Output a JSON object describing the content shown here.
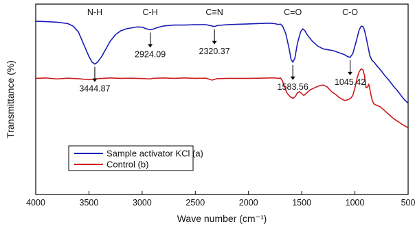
{
  "chart_data": {
    "type": "line",
    "title": "",
    "xlabel": "Wave number (cm⁻¹)",
    "ylabel": "Transmittance (%)",
    "xlim": [
      4000,
      500
    ],
    "x_reversed": true,
    "xticks": [
      4000,
      3500,
      3000,
      2500,
      2000,
      1500,
      1000,
      500
    ],
    "ylim": [
      0,
      100
    ],
    "yticks_shown": false,
    "grid": false,
    "legend": {
      "placement": "lower-left"
    },
    "series": [
      {
        "name": "Sample activator KCl (a)",
        "color": "#1a1ab8",
        "x": [
          4000,
          3900,
          3800,
          3700,
          3650,
          3600,
          3550,
          3500,
          3470,
          3444.87,
          3420,
          3380,
          3340,
          3300,
          3250,
          3200,
          3150,
          3100,
          3050,
          3000,
          2960,
          2924.09,
          2890,
          2850,
          2800,
          2700,
          2600,
          2500,
          2400,
          2350,
          2320.37,
          2290,
          2200,
          2100,
          2000,
          1900,
          1800,
          1750,
          1720,
          1700,
          1680,
          1650,
          1620,
          1600,
          1583.56,
          1565,
          1540,
          1510,
          1490,
          1470,
          1450,
          1400,
          1350,
          1300,
          1250,
          1200,
          1150,
          1100,
          1070,
          1045.42,
          1020,
          990,
          960,
          940,
          920,
          900,
          880,
          860,
          840,
          820,
          800,
          760,
          720,
          680,
          640,
          600,
          560,
          530,
          500
        ],
        "y": [
          91.0,
          90.8,
          90.5,
          89.8,
          88.5,
          85.5,
          79.0,
          72.5,
          69.5,
          68.5,
          69.5,
          72.5,
          76.5,
          80.5,
          84.0,
          86.0,
          87.0,
          87.5,
          88.0,
          87.9,
          87.0,
          86.5,
          87.0,
          87.8,
          88.5,
          89.0,
          89.0,
          89.2,
          89.2,
          88.6,
          88.2,
          88.8,
          89.2,
          89.4,
          89.6,
          89.8,
          90.0,
          89.7,
          89.3,
          89.5,
          88.5,
          84.5,
          77.0,
          71.0,
          69.5,
          71.5,
          79.5,
          85.5,
          87.0,
          86.0,
          84.0,
          80.5,
          78.0,
          76.5,
          76.0,
          75.5,
          74.5,
          73.5,
          72.5,
          72.0,
          74.0,
          80.0,
          86.5,
          88.5,
          88.0,
          84.0,
          78.5,
          73.0,
          70.5,
          69.5,
          68.0,
          65.5,
          62.5,
          60.0,
          57.0,
          54.5,
          51.5,
          49.5,
          48.0
        ]
      },
      {
        "name": "Control (b)",
        "color": "#cc1a1a",
        "x": [
          4000,
          3900,
          3800,
          3700,
          3600,
          3500,
          3450,
          3400,
          3300,
          3200,
          3100,
          3000,
          2924,
          2900,
          2800,
          2700,
          2600,
          2500,
          2400,
          2360,
          2340,
          2300,
          2200,
          2100,
          2000,
          1900,
          1800,
          1750,
          1720,
          1700,
          1680,
          1660,
          1640,
          1620,
          1600,
          1580,
          1560,
          1540,
          1520,
          1500,
          1480,
          1450,
          1420,
          1380,
          1340,
          1300,
          1260,
          1220,
          1180,
          1150,
          1120,
          1100,
          1080,
          1060,
          1040,
          1020,
          1000,
          980,
          960,
          940,
          925,
          910,
          895,
          880,
          870,
          860,
          850,
          840,
          830,
          820,
          800,
          760,
          720,
          680,
          640,
          600,
          560,
          530,
          500
        ],
        "y": [
          61.0,
          61.2,
          60.7,
          61.1,
          60.8,
          60.3,
          60.6,
          60.9,
          61.2,
          61.0,
          61.1,
          60.9,
          60.7,
          61.0,
          61.2,
          61.0,
          61.2,
          61.0,
          61.1,
          60.4,
          60.1,
          60.8,
          61.0,
          61.0,
          61.0,
          61.1,
          61.2,
          61.2,
          61.0,
          61.2,
          59.5,
          56.5,
          53.5,
          52.0,
          51.0,
          50.5,
          51.5,
          53.5,
          54.0,
          53.0,
          52.0,
          53.5,
          55.0,
          56.0,
          57.0,
          57.5,
          56.5,
          54.0,
          52.5,
          51.0,
          50.0,
          49.5,
          49.5,
          50.0,
          50.5,
          52.0,
          56.0,
          61.0,
          64.5,
          66.0,
          65.5,
          62.5,
          56.0,
          56.5,
          58.0,
          55.5,
          52.5,
          50.0,
          48.5,
          47.5,
          47.0,
          46.0,
          44.0,
          42.0,
          40.0,
          38.5,
          37.0,
          36.0,
          35.0
        ]
      }
    ],
    "band_labels": [
      {
        "text": "N-H",
        "x": 3444.87
      },
      {
        "text": "C-H",
        "x": 2924.09
      },
      {
        "text": "C≡N",
        "x": 2320.37
      },
      {
        "text": "C=O",
        "x": 1583.56
      },
      {
        "text": "C-O",
        "x": 1045.42
      }
    ],
    "peak_labels": [
      {
        "text": "3444.87",
        "x": 3444.87
      },
      {
        "text": "2924.09",
        "x": 2924.09
      },
      {
        "text": "2320.37",
        "x": 2320.37
      },
      {
        "text": "1583.56",
        "x": 1583.56
      },
      {
        "text": "1045.42",
        "x": 1045.42
      }
    ]
  }
}
